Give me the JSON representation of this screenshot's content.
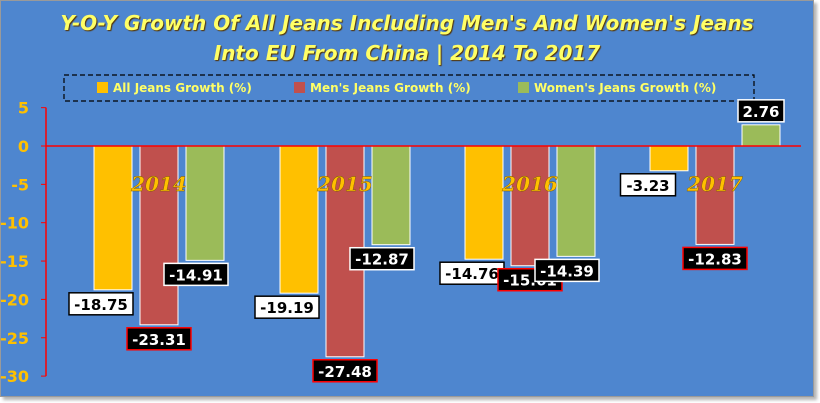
{
  "chart_data": {
    "type": "bar",
    "title_line1": "Y-O-Y Growth Of All Jeans Including Men's And Women's Jeans",
    "title_line2": "Into EU From China | 2014 To 2017",
    "categories": [
      "2014",
      "2015",
      "2016",
      "2017"
    ],
    "series": [
      {
        "name": "All Jeans  Growth (%)",
        "color": "#ffc000",
        "values": [
          -18.75,
          -19.19,
          -14.76,
          -3.23
        ],
        "label_style": "white"
      },
      {
        "name": "Men's Jeans  Growth (%)",
        "color": "#c0504d",
        "values": [
          -23.31,
          -27.48,
          -15.61,
          -12.83
        ],
        "label_style": "black-red"
      },
      {
        "name": "Women's Jeans  Growth (%)",
        "color": "#9bbb59",
        "values": [
          -14.91,
          -12.87,
          -14.39,
          2.76
        ],
        "label_style": "black-white"
      }
    ],
    "data_labels": [
      [
        "-18.75",
        "-19.19",
        "-14.76",
        "-3.23"
      ],
      [
        "-23.31",
        "-27.48",
        "-15.61",
        "-12.83"
      ],
      [
        "-14.91",
        "-12.87",
        "-14.39",
        "2.76"
      ]
    ],
    "ylim": [
      -30,
      5
    ],
    "yticks": [
      5,
      0,
      -5,
      -10,
      -15,
      -20,
      -25,
      -30
    ],
    "ytick_labels": [
      "5",
      "0",
      "-5",
      "-10",
      "-15",
      "-20",
      "-25",
      "-30"
    ],
    "grid": false,
    "legend_position": "top",
    "axis_color": "#ff0000",
    "category_label_color": "#ffc000"
  }
}
